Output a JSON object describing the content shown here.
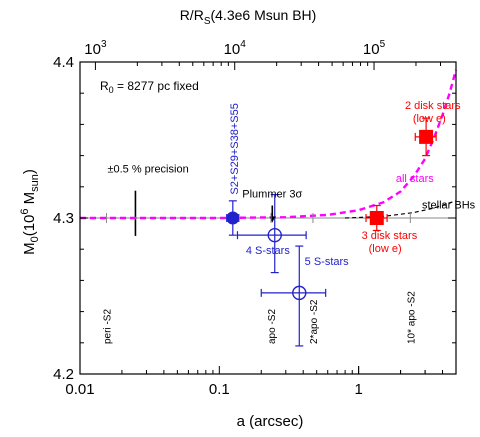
{
  "chart_data": {
    "type": "scatter",
    "title": "",
    "xlabel": "a (arcsec)",
    "ylabel_main": "M",
    "ylabel_sub": "0",
    "ylabel_open": "(10",
    "ylabel_sup": "6",
    "ylabel_unit": " M",
    "ylabel_unit_sub": "sun",
    "ylabel_close": ")",
    "top_axis_label_main": "R/R",
    "top_axis_label_sub": "S",
    "top_axis_label_rest": "(4.3e6 Msun BH)",
    "x_scale": "log",
    "xlim": [
      0.01,
      5
    ],
    "ylim": [
      4.2,
      4.4
    ],
    "x_ticks": [
      {
        "value": 0.01,
        "label": "0.01"
      },
      {
        "value": 0.1,
        "label": "0.1"
      },
      {
        "value": 1,
        "label": "1"
      }
    ],
    "y_ticks": [
      {
        "value": 4.2,
        "label": "4.2"
      },
      {
        "value": 4.3,
        "label": "4.3"
      },
      {
        "value": 4.4,
        "label": "4.4"
      }
    ],
    "top_ticks": [
      {
        "value": 0.0129,
        "base": "10",
        "exp": "3"
      },
      {
        "value": 0.129,
        "base": "10",
        "exp": "4"
      },
      {
        "value": 1.29,
        "base": "10",
        "exp": "5"
      }
    ],
    "fixed_note_main": "R",
    "fixed_note_sub": "0",
    "fixed_note_rest": " = 8277 pc fixed",
    "reference_line_y": 4.3,
    "precision": {
      "x": 0.025,
      "y_low": 4.2885,
      "y_high": 4.3175,
      "label": "±0.5 % precision"
    },
    "series": [
      {
        "name": "all stars",
        "color": "#ff00ff",
        "style": "dashed",
        "points": [
          [
            0.01,
            4.3
          ],
          [
            0.1,
            4.3
          ],
          [
            0.3,
            4.3005
          ],
          [
            0.6,
            4.302
          ],
          [
            1.0,
            4.305
          ],
          [
            1.5,
            4.31
          ],
          [
            2.0,
            4.317
          ],
          [
            2.5,
            4.327
          ],
          [
            3.0,
            4.338
          ],
          [
            3.5,
            4.352
          ],
          [
            4.0,
            4.366
          ],
          [
            4.5,
            4.38
          ],
          [
            5.0,
            4.395
          ]
        ]
      },
      {
        "name": "stellar BHs",
        "color": "#000000",
        "style": "dashed",
        "points": [
          [
            0.8,
            4.3
          ],
          [
            1.5,
            4.301
          ],
          [
            2.5,
            4.3035
          ],
          [
            3.5,
            4.3065
          ],
          [
            5.0,
            4.311
          ]
        ]
      }
    ],
    "points": [
      {
        "label": "S2+S29+S38+S55",
        "x": 0.125,
        "y": 4.3,
        "xerr": [
          0.113,
          0.138
        ],
        "yerr": [
          4.289,
          4.311
        ],
        "marker": "filled-circle",
        "color": "#2222cc"
      },
      {
        "label": "4 S-stars",
        "x": 0.25,
        "y": 4.289,
        "xerr": [
          0.135,
          0.42
        ],
        "yerr": [
          4.265,
          4.315
        ],
        "marker": "open-circle",
        "color": "#2222cc"
      },
      {
        "label": "5 S-stars",
        "x": 0.375,
        "y": 4.252,
        "xerr": [
          0.2,
          0.58
        ],
        "yerr": [
          4.218,
          4.282
        ],
        "marker": "open-circle",
        "color": "#2222cc"
      },
      {
        "label": "3 disk stars",
        "label2": "(low e)",
        "x": 1.35,
        "y": 4.3,
        "xerr": [
          1.13,
          1.6
        ],
        "yerr": [
          4.292,
          4.308
        ],
        "marker": "filled-square",
        "color": "#ff0000"
      },
      {
        "label": "2 disk stars",
        "label2": "(low e)",
        "x": 3.05,
        "y": 4.352,
        "xerr": [
          2.55,
          3.6
        ],
        "yerr": [
          4.34,
          4.364
        ],
        "marker": "filled-square",
        "color": "#ff0000"
      }
    ],
    "plummer": {
      "label": "Plummer 3σ",
      "x": 0.24,
      "y_start": 4.308,
      "y_end": 4.297
    },
    "all_stars_label": "all stars",
    "stellar_bhs_label": "stellar BHs",
    "orbit_markers": [
      {
        "label": "peri -S2",
        "x": 0.0155
      },
      {
        "label": "apo -S2",
        "x": 0.235
      },
      {
        "label": "2*apo -S2",
        "x": 0.47
      },
      {
        "label": "10* apo -S2",
        "x": 2.35
      }
    ]
  }
}
